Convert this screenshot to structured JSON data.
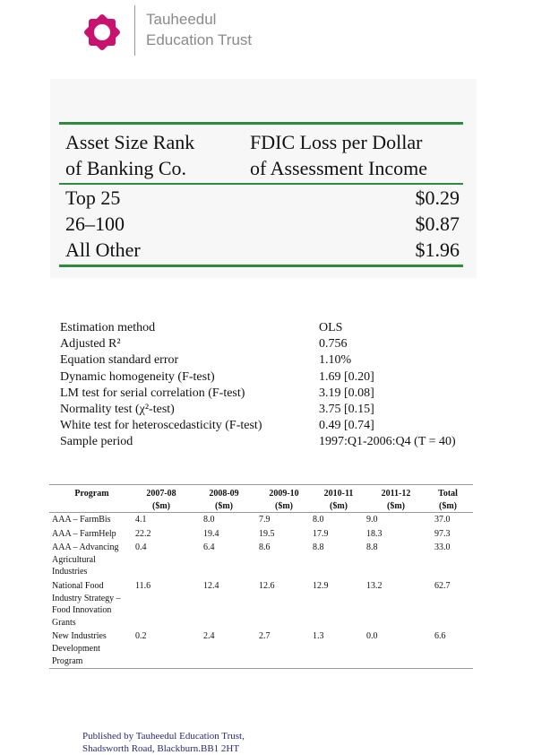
{
  "header": {
    "org_line1": "Tauheedul",
    "org_line2": "Education Trust",
    "brand_color": "#c8126e"
  },
  "table1": {
    "col1_header_line1": "Asset Size Rank",
    "col1_header_line2": "of Banking Co.",
    "col2_header_line1": "FDIC Loss per Dollar",
    "col2_header_line2": "of Assessment Income",
    "rows": [
      {
        "rank": "Top 25",
        "loss": "$0.29"
      },
      {
        "rank": "26–100",
        "loss": "$0.87"
      },
      {
        "rank": "All Other",
        "loss": "$1.96"
      }
    ],
    "rule_color": "#2e8b3e"
  },
  "table2": {
    "rows": [
      {
        "label": "Estimation method",
        "value": "OLS"
      },
      {
        "label": "Adjusted R²",
        "value": "0.756"
      },
      {
        "label": "Equation standard error",
        "value": "1.10%"
      },
      {
        "label": "Dynamic homogeneity (F-test)",
        "value": "1.69 [0.20]"
      },
      {
        "label": "LM test for serial correlation (F-test)",
        "value": "3.19 [0.08]"
      },
      {
        "label": "Normality test (χ²-test)",
        "value": "3.75 [0.15]"
      },
      {
        "label": "White test for heteroscedasticity (F-test)",
        "value": "0.49 [0.74]"
      },
      {
        "label": "Sample period",
        "value": "1997:Q1-2006:Q4 (T = 40)"
      }
    ]
  },
  "table3": {
    "headers": [
      {
        "line1": "Program",
        "line2": ""
      },
      {
        "line1": "2007-08",
        "line2": "($m)"
      },
      {
        "line1": "2008-09",
        "line2": "($m)"
      },
      {
        "line1": "2009-10",
        "line2": "($m)"
      },
      {
        "line1": "2010-11",
        "line2": "($m)"
      },
      {
        "line1": "2011-12",
        "line2": "($m)"
      },
      {
        "line1": "Total",
        "line2": "($m)"
      }
    ],
    "rows": [
      {
        "program": "AAA – FarmBis",
        "values": [
          "4.1",
          "8.0",
          "7.9",
          "8.0",
          "9.0",
          "37.0"
        ]
      },
      {
        "program": "AAA – FarmHelp",
        "values": [
          "22.2",
          "19.4",
          "19.5",
          "17.9",
          "18.3",
          "97.3"
        ]
      },
      {
        "program": "AAA – Advancing Agricultural Industries",
        "values": [
          "0.4",
          "6.4",
          "8.6",
          "8.8",
          "8.8",
          "33.0"
        ]
      },
      {
        "program": "National Food Industry Strategy – Food Innovation Grants",
        "values": [
          "11.6",
          "12.4",
          "12.6",
          "12.9",
          "13.2",
          "62.7"
        ]
      },
      {
        "program": "New Industries Development Program",
        "values": [
          "0.2",
          "2.4",
          "2.7",
          "1.3",
          "0.0",
          "6.6"
        ]
      }
    ]
  },
  "footer": {
    "line1": "Published by Tauheedul Education Trust,",
    "line2": "Shadsworth Road, Blackburn.BB1 2HT"
  }
}
